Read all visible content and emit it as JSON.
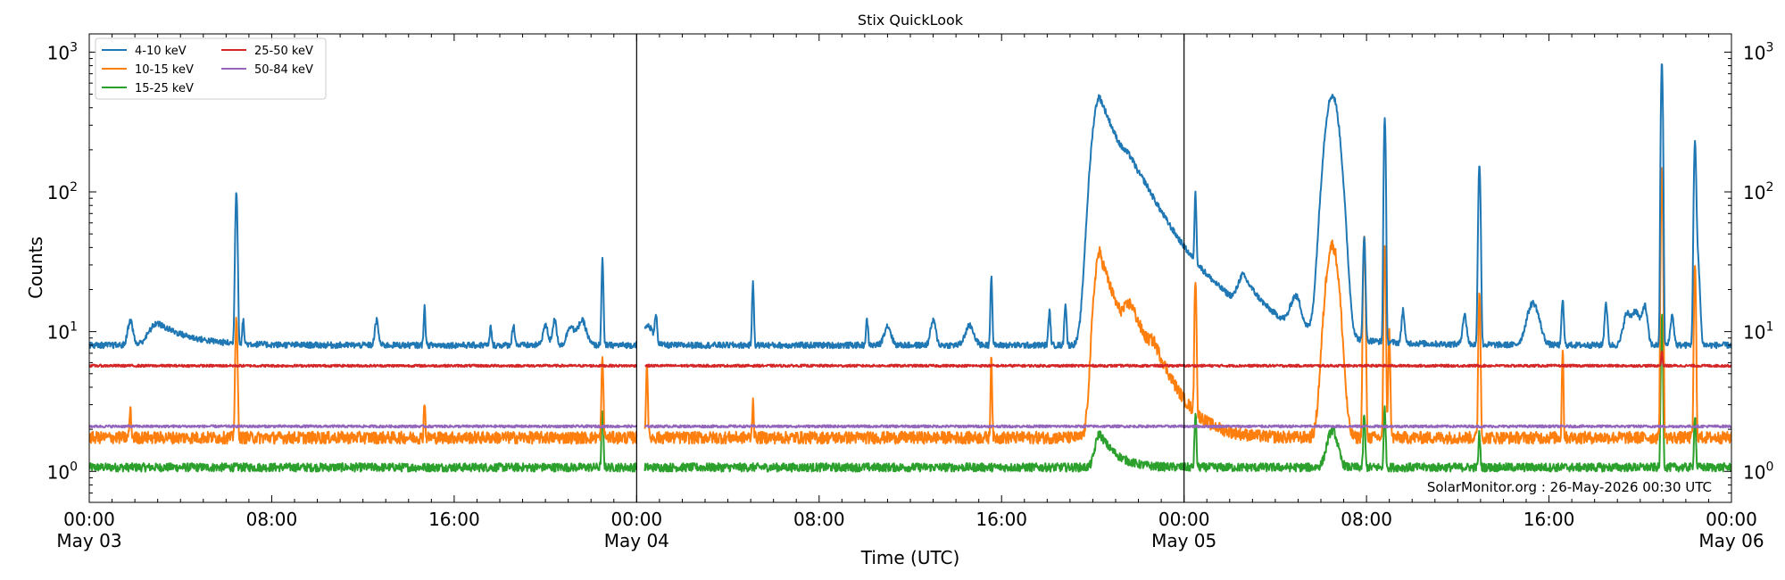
{
  "chart_data": {
    "type": "line",
    "title": "Stix QuickLook",
    "xlabel": "Time (UTC)",
    "ylabel": "Counts",
    "yscale": "log",
    "ylim": [
      0.6,
      1350
    ],
    "xlim_hours": [
      0,
      72
    ],
    "x_unit": "hours since 2026-05-03 00:00 UTC",
    "x_ticks": [
      {
        "h": 0,
        "label1": "00:00",
        "label2": "May 03"
      },
      {
        "h": 8,
        "label1": "08:00",
        "label2": ""
      },
      {
        "h": 16,
        "label1": "16:00",
        "label2": ""
      },
      {
        "h": 24,
        "label1": "00:00",
        "label2": "May 04"
      },
      {
        "h": 32,
        "label1": "08:00",
        "label2": ""
      },
      {
        "h": 40,
        "label1": "16:00",
        "label2": ""
      },
      {
        "h": 48,
        "label1": "00:00",
        "label2": "May 05"
      },
      {
        "h": 56,
        "label1": "08:00",
        "label2": ""
      },
      {
        "h": 64,
        "label1": "16:00",
        "label2": ""
      },
      {
        "h": 72,
        "label1": "00:00",
        "label2": "May 06"
      }
    ],
    "day_separators_h": [
      24,
      48
    ],
    "y_ticks": [
      {
        "value": 1,
        "exp": "0"
      },
      {
        "value": 10,
        "exp": "1"
      },
      {
        "value": 100,
        "exp": "2"
      },
      {
        "value": 1000,
        "exp": "3"
      }
    ],
    "data_gap_h": [
      24.0,
      24.35
    ],
    "legend_location": "upper-left",
    "annotation": "SolarMonitor.org : 26-May-2026 00:30 UTC",
    "series": [
      {
        "name": "4-10 keV",
        "color": "#1f77b4",
        "baseline": 8.0,
        "noise": 0.05,
        "events": [
          [
            1.8,
            0.15,
            4
          ],
          [
            3.0,
            1.0,
            3.5
          ],
          [
            6.45,
            0.06,
            92
          ],
          [
            6.75,
            0.05,
            4
          ],
          [
            12.6,
            0.1,
            4
          ],
          [
            14.7,
            0.05,
            7
          ],
          [
            17.6,
            0.05,
            3
          ],
          [
            18.6,
            0.08,
            3
          ],
          [
            20.0,
            0.15,
            3
          ],
          [
            20.4,
            0.12,
            4
          ],
          [
            21.1,
            0.2,
            3
          ],
          [
            21.6,
            0.25,
            4
          ],
          [
            22.5,
            0.05,
            25
          ],
          [
            24.5,
            0.3,
            3
          ],
          [
            24.85,
            0.06,
            5
          ],
          [
            29.1,
            0.05,
            14
          ],
          [
            34.1,
            0.06,
            4
          ],
          [
            35.0,
            0.2,
            3
          ],
          [
            37.0,
            0.15,
            4
          ],
          [
            38.6,
            0.25,
            3
          ],
          [
            39.55,
            0.05,
            17
          ],
          [
            42.1,
            0.06,
            6
          ],
          [
            42.8,
            0.06,
            8
          ],
          [
            44.3,
            0.8,
            470
          ],
          [
            46.3,
            1.8,
            40
          ],
          [
            45.6,
            0.3,
            20
          ],
          [
            48.5,
            0.05,
            65
          ],
          [
            50.6,
            0.6,
            10
          ],
          [
            52.9,
            0.3,
            7
          ],
          [
            54.5,
            0.4,
            480
          ],
          [
            56.8,
            0.05,
            340
          ],
          [
            55.9,
            0.06,
            40
          ],
          [
            57.6,
            0.08,
            6
          ],
          [
            60.3,
            0.12,
            5
          ],
          [
            60.95,
            0.06,
            150
          ],
          [
            63.3,
            0.35,
            8
          ],
          [
            64.6,
            0.06,
            9
          ],
          [
            66.5,
            0.08,
            8
          ],
          [
            67.4,
            0.2,
            5
          ],
          [
            67.8,
            0.25,
            6
          ],
          [
            68.2,
            0.15,
            7
          ],
          [
            68.95,
            0.05,
            850
          ],
          [
            69.4,
            0.1,
            5
          ],
          [
            70.4,
            0.06,
            200
          ],
          [
            70.5,
            0.12,
            30
          ]
        ]
      },
      {
        "name": "10-15 keV",
        "color": "#ff7f0e",
        "baseline": 1.75,
        "noise": 0.1,
        "events": [
          [
            6.45,
            0.06,
            10
          ],
          [
            1.8,
            0.05,
            1
          ],
          [
            14.7,
            0.04,
            1.5
          ],
          [
            22.5,
            0.05,
            4.5
          ],
          [
            24.45,
            0.05,
            4
          ],
          [
            29.1,
            0.04,
            1.6
          ],
          [
            39.55,
            0.04,
            5
          ],
          [
            44.3,
            0.6,
            35
          ],
          [
            45.7,
            0.8,
            8
          ],
          [
            46.7,
            0.6,
            2
          ],
          [
            48.5,
            0.05,
            22
          ],
          [
            54.5,
            0.35,
            40
          ],
          [
            55.9,
            0.06,
            45
          ],
          [
            56.8,
            0.05,
            40
          ],
          [
            57.0,
            0.05,
            8
          ],
          [
            60.95,
            0.05,
            18
          ],
          [
            64.6,
            0.04,
            6
          ],
          [
            68.95,
            0.05,
            140
          ],
          [
            70.4,
            0.05,
            28
          ]
        ]
      },
      {
        "name": "15-25 keV",
        "color": "#2ca02c",
        "baseline": 1.07,
        "noise": 0.07,
        "events": [
          [
            22.5,
            0.05,
            1.7
          ],
          [
            44.3,
            0.5,
            0.8
          ],
          [
            48.5,
            0.05,
            1.5
          ],
          [
            54.5,
            0.3,
            0.9
          ],
          [
            55.9,
            0.05,
            1.5
          ],
          [
            56.8,
            0.05,
            1.8
          ],
          [
            60.95,
            0.05,
            0.8
          ],
          [
            68.95,
            0.05,
            12
          ],
          [
            70.4,
            0.05,
            1.5
          ]
        ]
      },
      {
        "name": "25-50 keV",
        "color": "#d62728",
        "baseline": 5.7,
        "noise": 0.02,
        "events": [
          [
            68.95,
            0.04,
            1.5
          ]
        ]
      },
      {
        "name": "50-84 keV",
        "color": "#9467bd",
        "baseline": 2.1,
        "noise": 0.02,
        "events": []
      }
    ]
  }
}
